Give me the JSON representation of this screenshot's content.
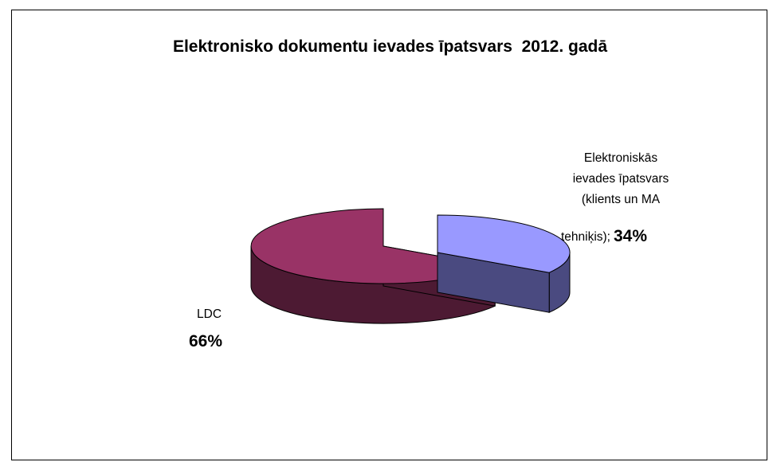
{
  "chart_data": {
    "type": "pie",
    "title": "Elektronisko dokumentu ievades īpatsvars  2012. gadā",
    "categories": [
      "Elektroniskās ievades īpatsvars (klients un MA tehniķis)",
      "LDC"
    ],
    "values": [
      34,
      66
    ],
    "unit": "%",
    "style": "3d-exploded",
    "colors": {
      "Elektroniskās ievades īpatsvars (klients un MA tehniķis)": {
        "top": "#9999ff",
        "side": "#4a4a80"
      },
      "LDC": {
        "top": "#993366",
        "side": "#4d1a33"
      }
    },
    "data_labels": [
      {
        "category": "Elektroniskās ievades īpatsvars (klients un MA tehniķis)",
        "lines": [
          "Elektroniskās",
          "ievades īpatsvars",
          "(klients un MA",
          "tehniķis);"
        ],
        "value_text": "34%"
      },
      {
        "category": "LDC",
        "lines": [
          "LDC"
        ],
        "value_text": "66%"
      }
    ]
  }
}
